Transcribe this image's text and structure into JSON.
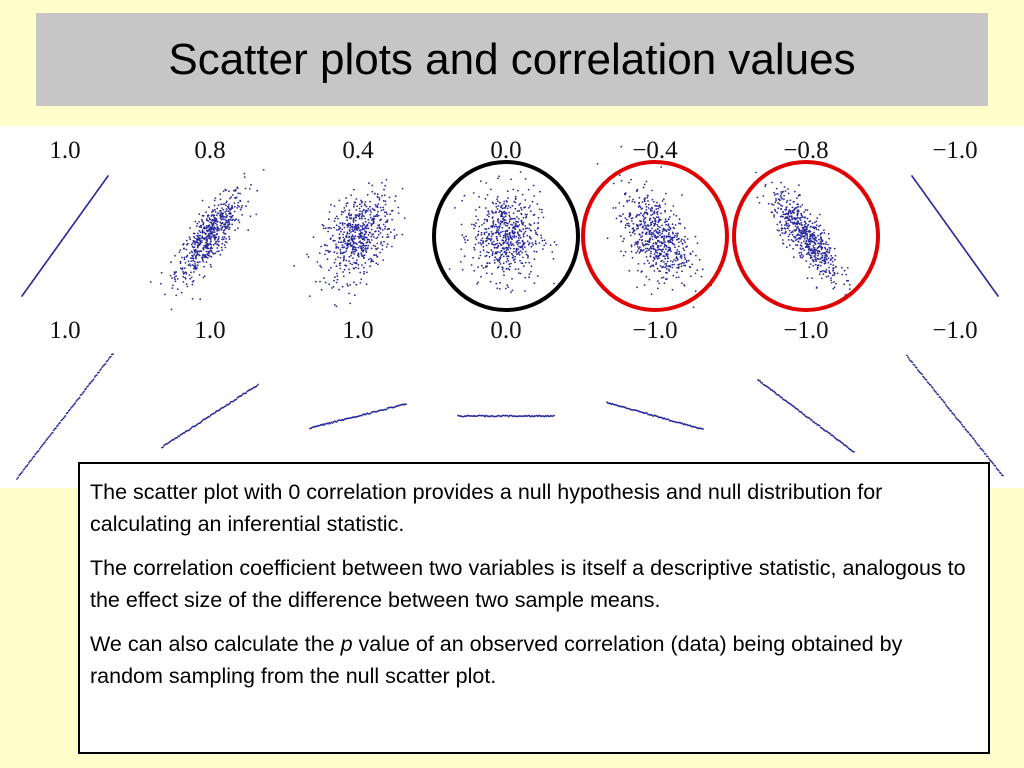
{
  "slide": {
    "title": "Scatter plots and correlation values",
    "background": "#ffffcc",
    "title_bar_color": "#c6c6c6"
  },
  "figure": {
    "row1_labels": [
      "1.0",
      "0.8",
      "0.4",
      "0.0",
      "−0.4",
      "−0.8",
      "−1.0"
    ],
    "row2_labels": [
      "1.0",
      "1.0",
      "1.0",
      "0.0",
      "−1.0",
      "−1.0",
      "−1.0"
    ],
    "row1_correlations": [
      1.0,
      0.8,
      0.4,
      0.0,
      -0.4,
      -0.8,
      -1.0
    ],
    "row2_correlations": [
      1.0,
      1.0,
      1.0,
      0.0,
      -1.0,
      -1.0,
      -1.0
    ],
    "highlights": [
      {
        "panel": 4,
        "color": "#000000"
      },
      {
        "panel": 5,
        "color": "#e00000"
      },
      {
        "panel": 6,
        "color": "#e00000"
      }
    ],
    "dot_color": "#2a2a9a"
  },
  "textbox": {
    "p1": "The scatter plot with 0 correlation provides a null hypothesis and null distribution for calculating an inferential statistic.",
    "p2": "The correlation coefficient between two variables is itself a descriptive statistic, analogous to the effect size of the difference between two sample means.",
    "p3_before": "We can also calculate the ",
    "p3_italic": "p",
    "p3_after": " value of an observed correlation (data) being obtained by random sampling from the null scatter plot."
  }
}
